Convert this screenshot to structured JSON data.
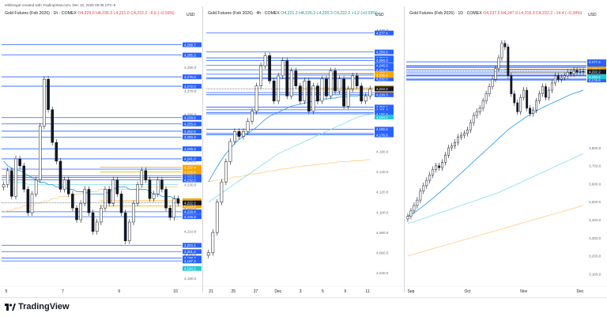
{
  "credit": "erikbregar created with TradingView.com, Dec 10, 2025 09:35 UTC-5",
  "brand": "TradingView",
  "colors": {
    "up": "#131722",
    "down": "#131722",
    "level": "#2962ff",
    "orange": "#f7a600",
    "blue_ma": "#2196f3",
    "cyan_ma": "#80deea",
    "orange_ma": "#ffcc80",
    "current": "#131722",
    "teal": "#26c6da"
  },
  "chart_data": [
    {
      "type": "candlestick",
      "title": "Gold Futures (Feb 2026) · 1h · COMEX",
      "ohlc_text": "O4,229.0 H4,235.3 L4,221.0 C4,222.2 −6.6 (−0.16%)",
      "axis_unit": "USD",
      "axis_sub": "",
      "ylim": [
        4188,
        4298
      ],
      "yticks": [
        4190,
        4200,
        4210,
        4220,
        4230,
        4240,
        4250,
        4260,
        4270,
        4280,
        4290
      ],
      "ytick_labels": [
        "4,190.0",
        "4,200.0",
        "4,210.0",
        "4,220.0",
        "4,230.0",
        "4,240.0",
        "4,250.0",
        "4,260.0",
        "4,270.0",
        "4,280.0",
        "4,290.0"
      ],
      "xticks": [
        "5",
        "7",
        "9",
        "10"
      ],
      "levels_blue": [
        4289.7,
        4285.3,
        4276.0,
        4272.0,
        4258.6,
        4255.9,
        4252.8,
        4250.3,
        4245.3,
        4241.0,
        4236.6,
        4233.8,
        4233.0,
        4232.0,
        4218.4,
        4216.3,
        4204.1,
        4201.4,
        4198.7,
        4197.4
      ],
      "level_labels_blue": [
        "4,289.7",
        "4,285.3",
        "4,276.0",
        "4,272.0",
        "4,258.6",
        "4,255.9",
        "4,252.8",
        "4,250.3",
        "4,245.3",
        "4,241.0",
        "4,236.6",
        "4,233.8",
        "4,233.0",
        "4,232.0",
        "4,218.4",
        "4,216.3",
        "4,204.1",
        "4,201.4",
        "4,198.7",
        "4,197.4"
      ],
      "levels_orange": [
        4237.4,
        4235.4,
        4223.1,
        4220.9
      ],
      "level_labels_orange": [
        "4,237.4",
        "4,235.4",
        "4,223.1",
        "4,220.9"
      ],
      "current": 4222.2,
      "current_label": "4,222.2",
      "teal_level": 4194.2,
      "teal_label": "4,194.2",
      "closes": [
        4230,
        4236,
        4225,
        4241,
        4238,
        4228,
        4218,
        4226,
        4232,
        4255,
        4275,
        4262,
        4248,
        4240,
        4228,
        4232,
        4226,
        4220,
        4215,
        4222,
        4228,
        4218,
        4210,
        4214,
        4220,
        4228,
        4222,
        4232,
        4226,
        4218,
        4206,
        4214,
        4222,
        4230,
        4236,
        4232,
        4224,
        4226,
        4232,
        4228,
        4220,
        4216,
        4224,
        4222
      ],
      "ma_blue": [
        4240,
        4238,
        4237,
        4236,
        4236,
        4235,
        4234,
        4233,
        4232,
        4231,
        4231,
        4230,
        4230,
        4229,
        4229,
        4229,
        4228,
        4228,
        4227,
        4227,
        4227,
        4226,
        4226,
        4226,
        4226,
        4226,
        4227,
        4228,
        4229,
        4229,
        4229,
        4228,
        4228,
        4228,
        4228,
        4228,
        4227,
        4226,
        4226,
        4225,
        4225,
        4225,
        4224,
        4224
      ],
      "ma_orange": [
        4218,
        4219,
        4219,
        4220,
        4220,
        4221,
        4221,
        4221,
        4222,
        4222,
        4223,
        4223,
        4224,
        4224,
        4225,
        4225,
        4225,
        4226,
        4226,
        4226,
        4227,
        4227,
        4227,
        4227,
        4228,
        4228,
        4228,
        4228,
        4228,
        4228,
        4228,
        4228,
        4228,
        4228,
        4229,
        4229,
        4229,
        4229,
        4229,
        4229,
        4229,
        4229,
        4229,
        4229
      ],
      "ma_cyan": [
        4232,
        4232,
        4231,
        4231,
        4231,
        4231,
        4230,
        4230,
        4230,
        4230,
        4230,
        4230,
        4230,
        4230,
        4230,
        4230,
        4230,
        4230,
        4230,
        4230,
        4230,
        4230,
        4230,
        4230,
        4230,
        4230,
        4230,
        4230,
        4230,
        4230,
        4230,
        4230,
        4230,
        4230,
        4230,
        4230,
        4230,
        4230,
        4230,
        4230,
        4230,
        4230,
        4230,
        4230
      ]
    },
    {
      "type": "candlestick",
      "title": "Gold Futures (Feb 2026) · 4h · COMEX",
      "ohlc_text": "O4,221.2 H4,226.3 L4,220.3 C4,222.2 +1.2 (+0.03%)",
      "axis_unit": "USD",
      "axis_sub": "",
      "ylim": [
        4030,
        4285
      ],
      "yticks": [
        4040,
        4060,
        4080,
        4100,
        4120,
        4140,
        4160,
        4180,
        4200,
        4220,
        4240,
        4260,
        4280
      ],
      "ytick_labels": [
        "4,040.0",
        "4,060.0",
        "4,080.0",
        "4,100.0",
        "4,120.0",
        "4,140.0",
        "4,160.0",
        "4,180.0",
        "4,200.0",
        "4,220.0",
        "4,240.0",
        "4,260.0",
        "4,280.0"
      ],
      "xticks": [
        "21",
        "25",
        "27",
        "Dec",
        "3",
        "5",
        "9",
        "11"
      ],
      "levels_blue": [
        4277.4,
        4258.6,
        4252.8,
        4250.3,
        4245.3,
        4241.0,
        4236.6,
        4233.0,
        4232.0,
        4218.4,
        4216.3,
        4204.1,
        4201.4,
        4198.7,
        4197.4,
        4182.2,
        4178.0,
        4176.6
      ],
      "level_labels_blue": [
        "4,277.4",
        "4,258.6",
        "4,252.8",
        "4,250.3",
        "4,245.3",
        "4,241.0",
        "4,236.6",
        "4,233.0",
        "4,232.0",
        "4,218.4",
        "4,216.3",
        "4,204.1",
        "4,201.4",
        "4,198.7",
        "4,197.4",
        "4,182.2",
        "4,178.0",
        "4,176.6"
      ],
      "levels_orange": [
        4237.4,
        4235.4,
        4223.1,
        4220.9
      ],
      "level_labels_orange": [
        "4,237.4",
        "4,235.4",
        "4,223.1",
        "4,220.9"
      ],
      "current": 4222.2,
      "current_label": "4,222.2",
      "teal_level": 4194.2,
      "teal_label": "4,194.2",
      "closes": [
        4060,
        4080,
        4110,
        4130,
        4150,
        4170,
        4180,
        4175,
        4180,
        4190,
        4200,
        4225,
        4245,
        4255,
        4230,
        4210,
        4235,
        4250,
        4215,
        4240,
        4225,
        4210,
        4230,
        4200,
        4225,
        4210,
        4232,
        4215,
        4240,
        4220,
        4232,
        4205,
        4222,
        4235,
        4225,
        4210,
        4215,
        4222
      ],
      "ma_blue": [
        4130,
        4138,
        4145,
        4152,
        4158,
        4163,
        4168,
        4172,
        4175,
        4178,
        4181,
        4184,
        4188,
        4192,
        4195,
        4197,
        4199,
        4201,
        4203,
        4205,
        4206,
        4207,
        4208,
        4209,
        4210,
        4211,
        4212,
        4212,
        4213,
        4213,
        4214,
        4214,
        4215,
        4215,
        4215,
        4216,
        4216,
        4216
      ],
      "ma_cyan": [
        4110,
        4113,
        4116,
        4119,
        4122,
        4125,
        4128,
        4131,
        4134,
        4137,
        4140,
        4143,
        4146,
        4149,
        4152,
        4155,
        4158,
        4160,
        4162,
        4164,
        4166,
        4168,
        4170,
        4172,
        4174,
        4176,
        4178,
        4180,
        4182,
        4184,
        4186,
        4188,
        4190,
        4192,
        4194,
        4195,
        4196,
        4197
      ],
      "ma_orange": [
        4130,
        4131,
        4132,
        4132,
        4133,
        4134,
        4135,
        4135,
        4136,
        4137,
        4138,
        4138,
        4139,
        4140,
        4141,
        4141,
        4142,
        4143,
        4143,
        4144,
        4145,
        4145,
        4146,
        4146,
        4147,
        4147,
        4148,
        4148,
        4149,
        4149,
        4150,
        4150,
        4150,
        4151,
        4151,
        4151,
        4152,
        4152
      ]
    },
    {
      "type": "candlestick",
      "title": "Gold Futures (Feb 2026) · 1D · COMEX",
      "ohlc_text": "O4,237.5 H4,247.9 L4,215.3 C4,222.2 −14.4 (−0.34%)",
      "axis_unit": "USD",
      "axis_sub": "",
      "ylim": [
        3050,
        4480
      ],
      "yticks": [
        3100,
        3200,
        3300,
        3400,
        3500,
        3600,
        3700,
        3800
      ],
      "ytick_labels": [
        "3,100.0",
        "3,200.0",
        "3,300.0",
        "3,400.0",
        "3,500.0",
        "3,600.0",
        "3,700.0",
        "3,800.0"
      ],
      "xticks": [
        "Sep",
        "Oct",
        "Nov",
        "Dec"
      ],
      "levels_blue": [
        4277.4,
        4255.9,
        4252.8,
        4245.3,
        4233.0,
        4216.3,
        4204.1,
        4201.4,
        4198.7,
        4182.2,
        4178.0,
        4176.6
      ],
      "level_labels_blue": [
        "4,277.4",
        "4,255.9",
        "4,252.8",
        "4,245.3",
        "4,233.0",
        "4,216.3",
        "4,204.1",
        "4,201.4",
        "4,198.7",
        "4,182.2",
        "4,178.0",
        "4,176.6"
      ],
      "levels_orange": [
        4237.4,
        4235.4,
        4220.9
      ],
      "level_labels_orange": [
        "4,237.4",
        "4,235.4",
        "4,220.9"
      ],
      "current": 4222.2,
      "current_label": "4,222.2",
      "teal_level": 4194.2,
      "teal_label": "4,194.2",
      "closes": [
        3420,
        3450,
        3480,
        3510,
        3560,
        3590,
        3620,
        3650,
        3680,
        3700,
        3690,
        3720,
        3760,
        3800,
        3810,
        3830,
        3860,
        3870,
        3880,
        3900,
        3940,
        3980,
        4000,
        4020,
        4060,
        4100,
        4140,
        4180,
        4240,
        4300,
        4380,
        4360,
        4200,
        4100,
        4050,
        4000,
        4080,
        4120,
        4020,
        3990,
        4010,
        4060,
        4100,
        4140,
        4080,
        4120,
        4160,
        4200,
        4180,
        4190,
        4200,
        4220,
        4210,
        4230,
        4220,
        4225,
        4222
      ],
      "ma_blue": [
        3420,
        3430,
        3440,
        3452,
        3465,
        3478,
        3492,
        3506,
        3520,
        3535,
        3550,
        3565,
        3580,
        3596,
        3612,
        3628,
        3644,
        3660,
        3676,
        3692,
        3708,
        3724,
        3740,
        3756,
        3772,
        3788,
        3804,
        3820,
        3836,
        3852,
        3868,
        3884,
        3900,
        3914,
        3926,
        3938,
        3950,
        3962,
        3974,
        3984,
        3994,
        4004,
        4014,
        4024,
        4032,
        4040,
        4048,
        4056,
        4064,
        4072,
        4080,
        4088,
        4096,
        4102,
        4108,
        4114,
        4120
      ],
      "ma_cyan": [
        3380,
        3385,
        3390,
        3396,
        3402,
        3408,
        3414,
        3420,
        3426,
        3432,
        3438,
        3444,
        3450,
        3456,
        3462,
        3468,
        3474,
        3480,
        3486,
        3492,
        3498,
        3504,
        3510,
        3516,
        3522,
        3528,
        3534,
        3540,
        3546,
        3552,
        3560,
        3568,
        3576,
        3584,
        3592,
        3600,
        3608,
        3616,
        3624,
        3632,
        3640,
        3648,
        3656,
        3664,
        3672,
        3680,
        3688,
        3696,
        3704,
        3712,
        3720,
        3728,
        3736,
        3744,
        3752,
        3760,
        3768
      ],
      "ma_orange": [
        3200,
        3205,
        3210,
        3215,
        3220,
        3225,
        3230,
        3235,
        3240,
        3245,
        3250,
        3255,
        3260,
        3265,
        3270,
        3275,
        3280,
        3285,
        3290,
        3295,
        3300,
        3305,
        3310,
        3315,
        3320,
        3325,
        3330,
        3335,
        3340,
        3345,
        3350,
        3355,
        3360,
        3365,
        3370,
        3375,
        3380,
        3385,
        3390,
        3395,
        3400,
        3405,
        3410,
        3415,
        3420,
        3425,
        3430,
        3435,
        3440,
        3445,
        3450,
        3455,
        3460,
        3465,
        3470,
        3475,
        3480
      ]
    }
  ]
}
